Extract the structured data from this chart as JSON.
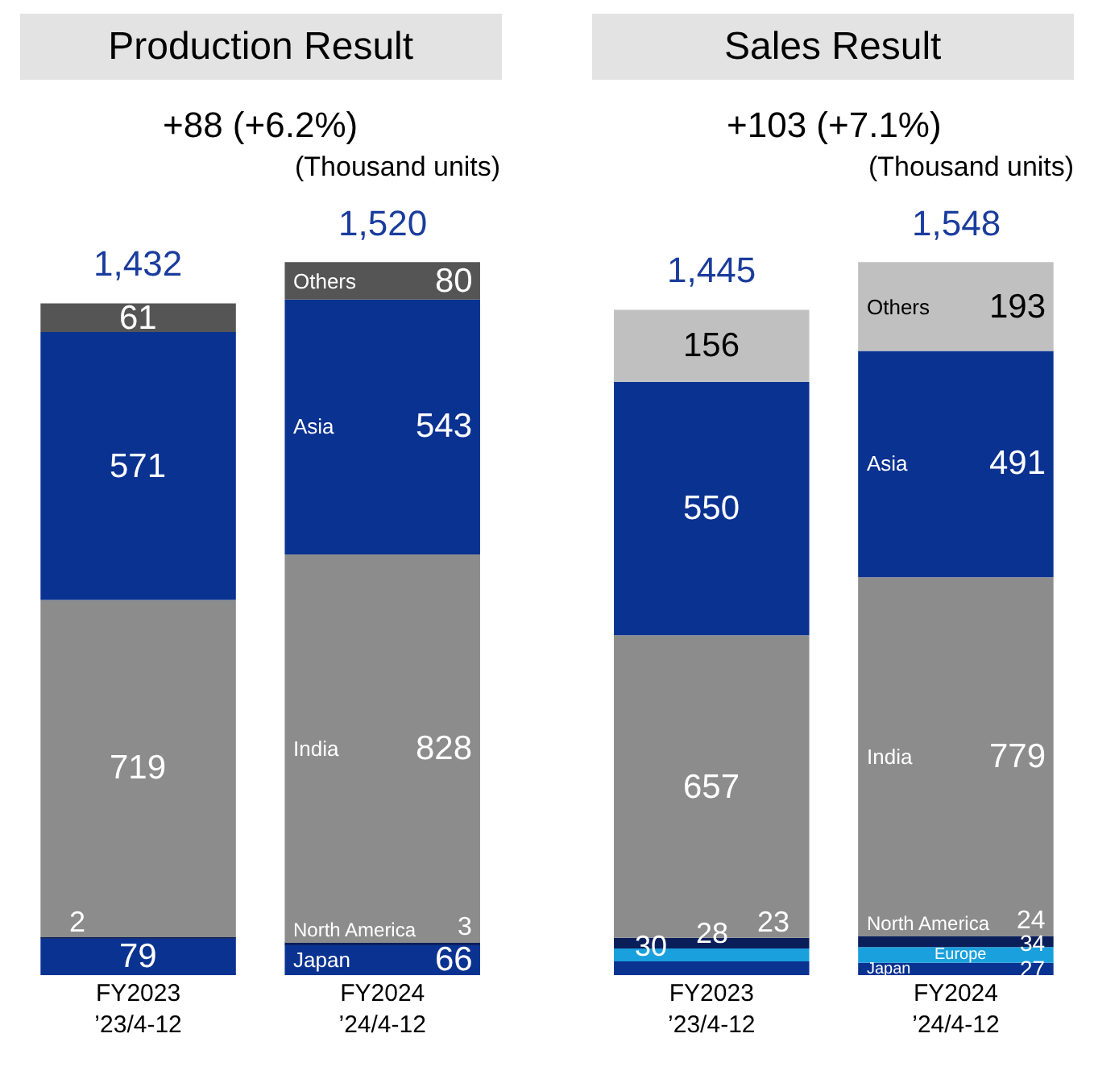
{
  "chart_data": [
    {
      "type": "bar",
      "stacked": true,
      "legend": false,
      "data_labels": true,
      "title": "Production Result",
      "subtitle": "+88 (+6.2%)",
      "annotations": [
        "(Thousand units)"
      ],
      "categories": [
        "FY2023\n’23/4-12",
        "FY2024\n’24/4-12"
      ],
      "totals": [
        "1,432",
        "1,520"
      ],
      "series": [
        {
          "name": "Japan",
          "color": "#0a3291",
          "values": [
            79,
            66
          ]
        },
        {
          "name": "North America",
          "color": "#0a1e5a",
          "values": [
            2,
            3
          ]
        },
        {
          "name": "India",
          "color": "#8c8c8c",
          "values": [
            719,
            828
          ]
        },
        {
          "name": "Asia",
          "color": "#0a3291",
          "values": [
            571,
            543
          ]
        },
        {
          "name": "Others",
          "color": "#555555",
          "values": [
            61,
            80
          ]
        }
      ]
    },
    {
      "type": "bar",
      "stacked": true,
      "legend": false,
      "data_labels": true,
      "title": "Sales Result",
      "subtitle": "+103 (+7.1%)",
      "annotations": [
        "(Thousand units)"
      ],
      "categories": [
        "FY2023\n’23/4-12",
        "FY2024\n’24/4-12"
      ],
      "totals": [
        "1,445",
        "1,548"
      ],
      "series": [
        {
          "name": "Japan",
          "color": "#0a3291",
          "values": [
            30,
            27
          ]
        },
        {
          "name": "Europe",
          "color": "#1aa0dc",
          "values": [
            28,
            34
          ]
        },
        {
          "name": "North America",
          "color": "#0a1e5a",
          "values": [
            23,
            24
          ]
        },
        {
          "name": "India",
          "color": "#8c8c8c",
          "values": [
            657,
            779
          ]
        },
        {
          "name": "Asia",
          "color": "#0a3291",
          "values": [
            550,
            491
          ]
        },
        {
          "name": "Others",
          "color": "#c0c0c0",
          "values": [
            156,
            193
          ]
        }
      ]
    }
  ]
}
